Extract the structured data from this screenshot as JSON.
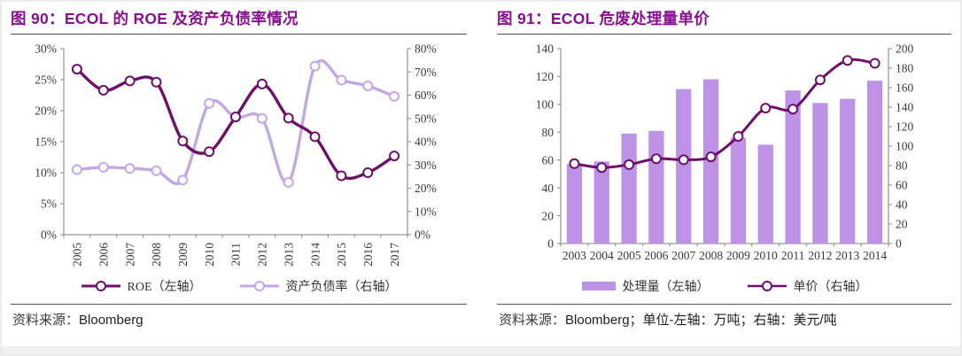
{
  "colors": {
    "title": "#8A1091",
    "dark_line": "#6E0F6B",
    "light_line": "#C4A7E7",
    "bar_fill": "#BD92E7",
    "axis_line": "#999999",
    "tick_text": "#3a3a3a",
    "marker_fill": "#ffffff"
  },
  "left_panel": {
    "title": "图 90：ECOL 的 ROE 及资产负债率情况",
    "legend": [
      {
        "label": "ROE（左轴）",
        "marker": "line-dark"
      },
      {
        "label": "资产负债率（右轴）",
        "marker": "line-light"
      }
    ],
    "source_label": "资料来源：",
    "source_value": "Bloomberg"
  },
  "right_panel": {
    "title": "图 91：ECOL 危废处理量单价",
    "legend": [
      {
        "label": "处理量（左轴）",
        "marker": "bar"
      },
      {
        "label": "单价（右轴）",
        "marker": "line-dark"
      }
    ],
    "source_label": "资料来源：",
    "source_value": "Bloomberg；单位-左轴：万吨；右轴：美元/吨"
  },
  "chart_data": [
    {
      "type": "line",
      "title": "图 90：ECOL 的 ROE 及资产负债率情况",
      "categories": [
        "2005",
        "2006",
        "2007",
        "2008",
        "2009",
        "2010",
        "2011",
        "2012",
        "2013",
        "2014",
        "2015",
        "2016",
        "2017"
      ],
      "series": [
        {
          "name": "ROE（左轴）",
          "kind": "line",
          "axis": "left",
          "color_key": "dark_line",
          "values": [
            26.7,
            23.3,
            24.8,
            24.6,
            15.1,
            13.4,
            19.0,
            24.3,
            18.8,
            15.8,
            9.5,
            10.0,
            12.7
          ]
        },
        {
          "name": "资产负债率（右轴）",
          "kind": "line",
          "axis": "right",
          "color_key": "light_line",
          "values": [
            28.0,
            29.0,
            28.5,
            27.5,
            23.5,
            56.5,
            50.5,
            50.0,
            22.5,
            72.5,
            66.5,
            64.0,
            59.5
          ]
        }
      ],
      "left_axis": {
        "min": 0,
        "max": 30,
        "step": 5,
        "suffix": "%"
      },
      "right_axis": {
        "min": 0,
        "max": 80,
        "step": 10,
        "suffix": "%"
      },
      "x_label_rotation": -90,
      "grid": false,
      "legend_position": "bottom"
    },
    {
      "type": "bar+line",
      "title": "图 91：ECOL 危废处理量单价",
      "categories": [
        "2003",
        "2004",
        "2005",
        "2006",
        "2007",
        "2008",
        "2009",
        "2010",
        "2011",
        "2012",
        "2013",
        "2014"
      ],
      "series": [
        {
          "name": "处理量（左轴）",
          "kind": "bar",
          "axis": "left",
          "color_key": "bar_fill",
          "values": [
            57,
            59,
            79,
            81,
            111,
            118,
            76,
            71,
            110,
            101,
            104,
            117
          ]
        },
        {
          "name": "单价（右轴）",
          "kind": "line",
          "axis": "right",
          "color_key": "dark_line",
          "values": [
            82,
            78,
            81,
            87,
            86,
            89,
            110,
            139,
            138,
            168,
            188,
            185
          ]
        }
      ],
      "left_axis": {
        "min": 0,
        "max": 140,
        "step": 20,
        "suffix": ""
      },
      "right_axis": {
        "min": 0,
        "max": 200,
        "step": 20,
        "suffix": ""
      },
      "x_label_rotation": 0,
      "grid": false,
      "legend_position": "bottom",
      "units_note": "单位-左轴：万吨；右轴：美元/吨"
    }
  ]
}
